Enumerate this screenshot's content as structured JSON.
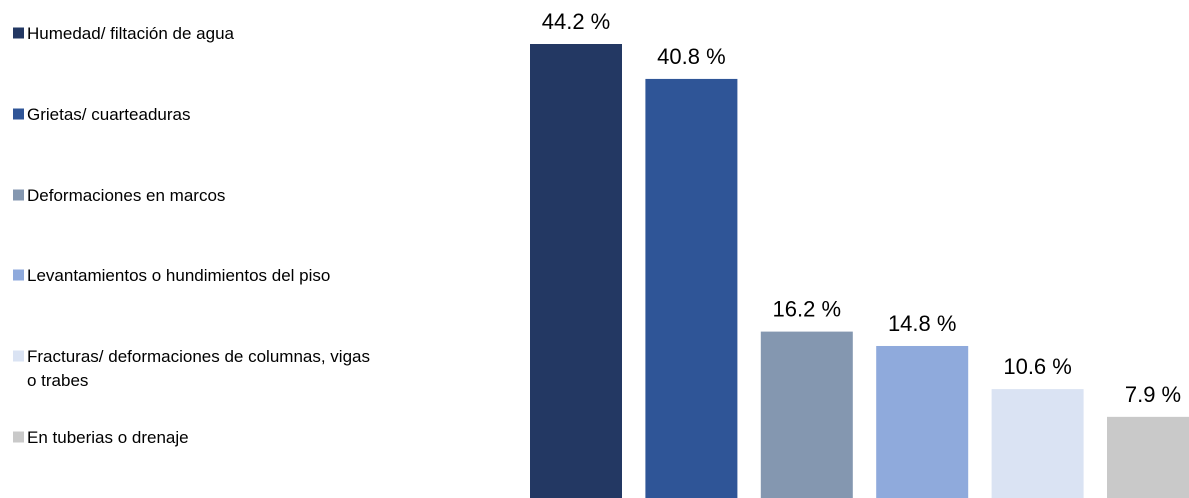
{
  "chart_data": {
    "type": "bar",
    "categories": [
      "Humedad/ filtación de agua",
      "Grietas/ cuarteaduras",
      "Deformaciones en marcos",
      "Levantamientos o hundimientos del piso",
      "Fracturas/ deformaciones de columnas, vigas o trabes",
      "En tuberias o drenaje"
    ],
    "legend_lines": [
      [
        "Humedad/ filtación de agua"
      ],
      [
        "Grietas/ cuarteaduras"
      ],
      [
        "Deformaciones en marcos"
      ],
      [
        "Levantamientos o hundimientos del piso"
      ],
      [
        "Fracturas/ deformaciones de columnas, vigas",
        "o trabes"
      ],
      [
        "En tuberias o drenaje"
      ]
    ],
    "values": [
      44.2,
      40.8,
      16.2,
      14.8,
      10.6,
      7.9
    ],
    "data_labels": [
      "44.2 %",
      "40.8 %",
      "16.2 %",
      "14.8 %",
      "10.6 %",
      "7.9 %"
    ],
    "colors": [
      "#233863",
      "#2F5597",
      "#8497B0",
      "#8FAADC",
      "#DAE3F3",
      "#C9C9C9"
    ],
    "ylim": [
      0,
      44.2
    ],
    "grid": false,
    "legend_position": "left",
    "title": "",
    "xlabel": "",
    "ylabel": ""
  }
}
